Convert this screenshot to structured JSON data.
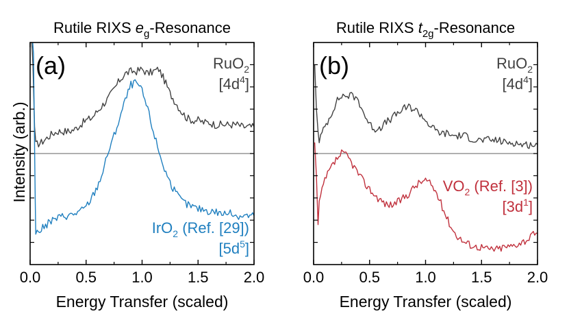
{
  "chart_data": [
    {
      "type": "line",
      "panel": "(a)",
      "title": {
        "pre": "Rutile RIXS ",
        "italic": "e",
        "sub": "g",
        "post": "-Resonance"
      },
      "xlabel": "Energy Transfer (scaled)",
      "ylabel": "Intensity (arb.)",
      "xlim": [
        0.0,
        2.0
      ],
      "ylim": [
        0.0,
        1.0
      ],
      "xticks": [
        "0.0",
        "0.5",
        "1.0",
        "1.5",
        "2.0"
      ],
      "reference_line": 0.5,
      "series": [
        {
          "label_lines": [
            {
              "main": "RuO",
              "sub": "2",
              "rest": ""
            },
            {
              "main": "[4d",
              "sup": "4",
              "rest": "]"
            }
          ],
          "color": "#404040",
          "x": [
            0.05,
            0.1,
            0.15,
            0.2,
            0.25,
            0.3,
            0.35,
            0.4,
            0.45,
            0.5,
            0.55,
            0.6,
            0.65,
            0.7,
            0.75,
            0.8,
            0.85,
            0.9,
            0.95,
            1.0,
            1.05,
            1.1,
            1.15,
            1.2,
            1.25,
            1.3,
            1.35,
            1.4,
            1.45,
            1.5,
            1.55,
            1.6,
            1.65,
            1.7,
            1.75,
            1.8,
            1.85,
            1.9,
            1.95,
            2.0
          ],
          "y": [
            0.54,
            0.55,
            0.57,
            0.59,
            0.6,
            0.6,
            0.6,
            0.61,
            0.63,
            0.65,
            0.66,
            0.69,
            0.72,
            0.75,
            0.79,
            0.83,
            0.86,
            0.87,
            0.87,
            0.88,
            0.86,
            0.87,
            0.88,
            0.83,
            0.77,
            0.73,
            0.69,
            0.66,
            0.65,
            0.65,
            0.64,
            0.64,
            0.63,
            0.63,
            0.63,
            0.63,
            0.63,
            0.62,
            0.62,
            0.62
          ]
        },
        {
          "label_lines": [
            {
              "main": "IrO",
              "sub": "2",
              "rest": " (Ref. [29])"
            },
            {
              "main": "[5d",
              "sup": "5",
              "rest": "]"
            }
          ],
          "color": "#1f7fbf",
          "x": [
            0.05,
            0.1,
            0.15,
            0.2,
            0.25,
            0.3,
            0.35,
            0.4,
            0.45,
            0.5,
            0.55,
            0.6,
            0.65,
            0.7,
            0.75,
            0.8,
            0.85,
            0.9,
            0.95,
            1.0,
            1.05,
            1.1,
            1.15,
            1.2,
            1.25,
            1.3,
            1.35,
            1.4,
            1.45,
            1.5,
            1.55,
            1.6,
            1.65,
            1.7,
            1.75,
            1.8,
            1.85,
            1.9,
            1.95,
            2.0
          ],
          "y": [
            0.14,
            0.16,
            0.18,
            0.2,
            0.21,
            0.22,
            0.22,
            0.23,
            0.24,
            0.26,
            0.3,
            0.35,
            0.42,
            0.51,
            0.58,
            0.66,
            0.74,
            0.81,
            0.82,
            0.78,
            0.7,
            0.6,
            0.51,
            0.43,
            0.37,
            0.32,
            0.29,
            0.27,
            0.26,
            0.25,
            0.25,
            0.24,
            0.24,
            0.23,
            0.23,
            0.23,
            0.22,
            0.22,
            0.22,
            0.22
          ]
        }
      ]
    },
    {
      "type": "line",
      "panel": "(b)",
      "title": {
        "pre": "Rutile RIXS ",
        "italic": "t",
        "sub": "2g",
        "post": "-Resonance"
      },
      "xlabel": "Energy Transfer (scaled)",
      "ylabel": "",
      "xlim": [
        0.0,
        2.0
      ],
      "ylim": [
        0.0,
        1.0
      ],
      "xticks": [
        "0.0",
        "0.5",
        "1.0",
        "1.5",
        "2.0"
      ],
      "reference_line": 0.5,
      "series": [
        {
          "label_lines": [
            {
              "main": "RuO",
              "sub": "2",
              "rest": ""
            },
            {
              "main": "[4d",
              "sup": "4",
              "rest": "]"
            }
          ],
          "color": "#404040",
          "x": [
            0.05,
            0.1,
            0.15,
            0.2,
            0.25,
            0.3,
            0.35,
            0.4,
            0.45,
            0.5,
            0.55,
            0.6,
            0.65,
            0.7,
            0.75,
            0.8,
            0.85,
            0.9,
            0.95,
            1.0,
            1.05,
            1.1,
            1.15,
            1.2,
            1.25,
            1.3,
            1.35,
            1.4,
            1.45,
            1.5,
            1.55,
            1.6,
            1.65,
            1.7,
            1.75,
            1.8,
            1.85,
            1.9,
            1.95,
            2.0
          ],
          "y": [
            0.56,
            0.62,
            0.67,
            0.73,
            0.76,
            0.76,
            0.76,
            0.74,
            0.68,
            0.63,
            0.61,
            0.62,
            0.64,
            0.66,
            0.68,
            0.7,
            0.71,
            0.7,
            0.68,
            0.65,
            0.62,
            0.6,
            0.59,
            0.59,
            0.58,
            0.58,
            0.58,
            0.57,
            0.56,
            0.56,
            0.56,
            0.56,
            0.56,
            0.55,
            0.55,
            0.55,
            0.54,
            0.54,
            0.54,
            0.54
          ]
        },
        {
          "label_lines": [
            {
              "main": "VO",
              "sub": "2",
              "rest": " (Ref. [3])"
            },
            {
              "main": "[3d",
              "sup": "1",
              "rest": "]"
            }
          ],
          "color": "#c0303c",
          "x": [
            0.05,
            0.1,
            0.15,
            0.2,
            0.25,
            0.3,
            0.35,
            0.4,
            0.45,
            0.5,
            0.55,
            0.6,
            0.65,
            0.7,
            0.75,
            0.8,
            0.85,
            0.9,
            0.95,
            1.0,
            1.05,
            1.1,
            1.15,
            1.2,
            1.25,
            1.3,
            1.35,
            1.4,
            1.45,
            1.5,
            1.55,
            1.6,
            1.65,
            1.7,
            1.75,
            1.8,
            1.85,
            1.9,
            1.95,
            2.0
          ],
          "y": [
            0.28,
            0.38,
            0.43,
            0.47,
            0.5,
            0.49,
            0.45,
            0.41,
            0.37,
            0.34,
            0.31,
            0.29,
            0.27,
            0.27,
            0.28,
            0.3,
            0.32,
            0.35,
            0.37,
            0.38,
            0.36,
            0.32,
            0.26,
            0.2,
            0.15,
            0.12,
            0.1,
            0.09,
            0.08,
            0.08,
            0.07,
            0.07,
            0.07,
            0.08,
            0.08,
            0.09,
            0.1,
            0.11,
            0.13,
            0.14
          ]
        }
      ]
    }
  ]
}
